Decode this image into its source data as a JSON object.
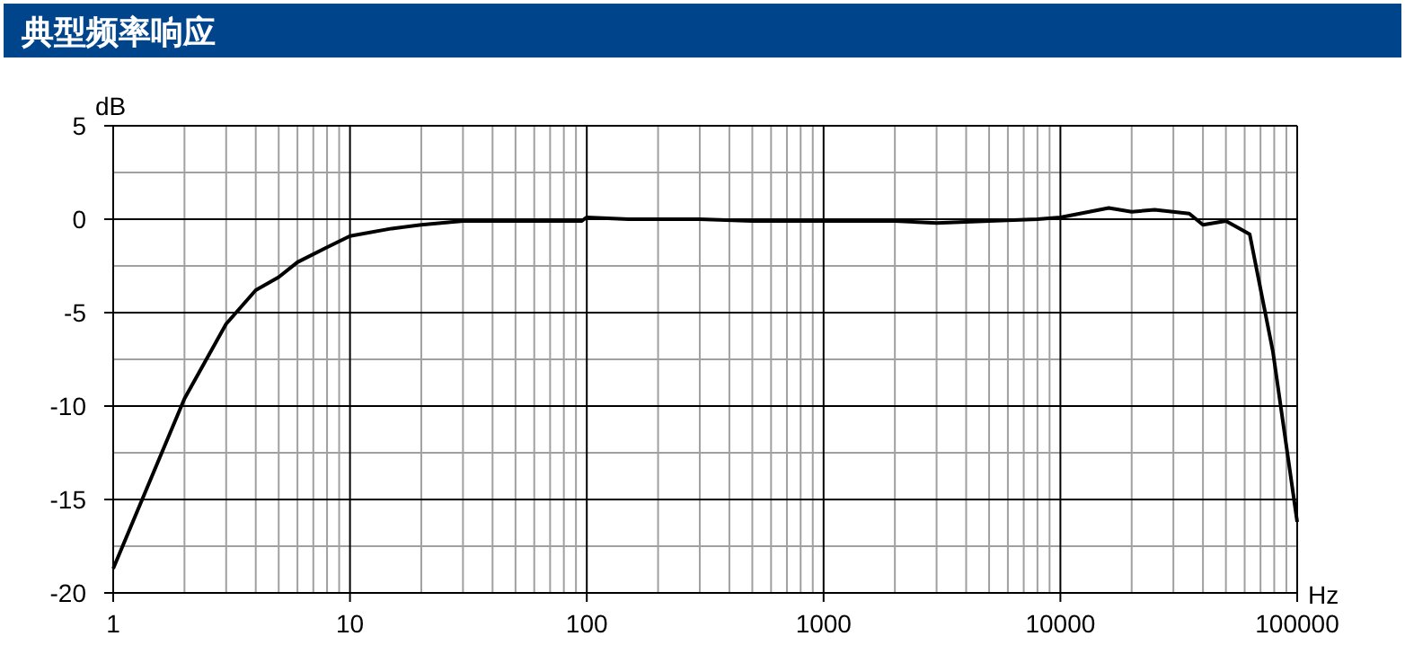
{
  "chart_data": {
    "type": "line",
    "title": "典型频率响应",
    "xlabel": "Hz",
    "ylabel": "dB",
    "log": "x",
    "grid": true,
    "xlim": [
      1,
      100000
    ],
    "ylim": [
      -20,
      5
    ],
    "xticks": [
      1,
      10,
      100,
      1000,
      10000,
      100000
    ],
    "yticks": [
      -20,
      -15,
      -10,
      -5,
      0,
      5
    ],
    "series": [
      {
        "color": "#000000",
        "x": [
          1,
          2,
          3,
          4,
          5,
          6,
          8,
          10,
          15,
          20,
          30,
          50,
          95,
          100,
          150,
          300,
          500,
          1000,
          2000,
          3000,
          5000,
          8000,
          10000,
          16000,
          20000,
          25000,
          35000,
          40000,
          50000,
          63000,
          79000,
          100000
        ],
        "values": [
          -18.7,
          -9.6,
          -5.6,
          -3.8,
          -3.1,
          -2.3,
          -1.5,
          -0.9,
          -0.5,
          -0.3,
          -0.1,
          -0.1,
          -0.1,
          0.1,
          0,
          0,
          -0.1,
          -0.1,
          -0.1,
          -0.2,
          -0.1,
          0,
          0.1,
          0.6,
          0.4,
          0.5,
          0.3,
          -0.3,
          -0.1,
          -0.8,
          -7.1,
          -16.2
        ]
      }
    ]
  }
}
